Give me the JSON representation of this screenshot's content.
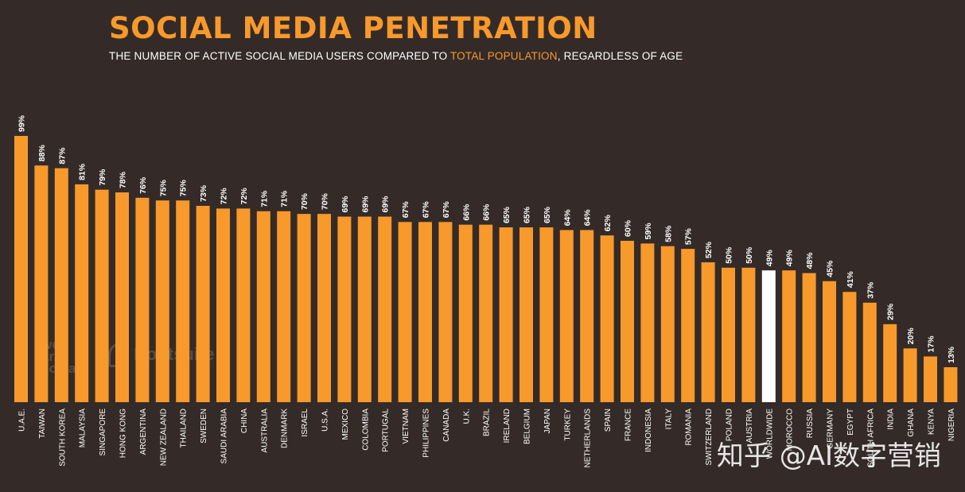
{
  "header": {
    "title": "SOCIAL MEDIA PENETRATION",
    "subtitle_part1": "THE NUMBER OF ACTIVE SOCIAL MEDIA USERS COMPARED TO ",
    "subtitle_highlight": "TOTAL POPULATION",
    "subtitle_part2": ", REGARDLESS OF AGE"
  },
  "logos": {
    "wearesocial_line1": "we",
    "wearesocial_line2": "are",
    "wearesocial_line3": "social",
    "hootsuite": "Hootsuite"
  },
  "watermark": "知乎 @AI数字营销",
  "colors": {
    "background": "#342b28",
    "bar": "#f8992c",
    "highlight_bar": "#ffffff",
    "text": "#ffffff"
  },
  "chart_data": {
    "type": "bar",
    "title": "SOCIAL MEDIA PENETRATION",
    "xlabel": "",
    "ylabel": "",
    "ylim": [
      0,
      100
    ],
    "grid": false,
    "highlight_category": "WORLDWIDE",
    "categories": [
      "U.A.E.",
      "TAIWAN",
      "SOUTH KOREA",
      "MALAYSIA",
      "SINGAPORE",
      "HONG KONG",
      "ARGENTINA",
      "NEW ZEALAND",
      "THAILAND",
      "SWEDEN",
      "SAUDI ARABIA",
      "CHINA",
      "AUSTRALIA",
      "DENMARK",
      "ISRAEL",
      "U.S.A.",
      "MEXICO",
      "COLOMBIA",
      "PORTUGAL",
      "VIETNAM",
      "PHILIPPINES",
      "CANADA",
      "U.K.",
      "BRAZIL",
      "IRELAND",
      "BELGIUM",
      "JAPAN",
      "TURKEY",
      "NETHERLANDS",
      "SPAIN",
      "FRANCE",
      "INDONESIA",
      "ITALY",
      "ROMANIA",
      "SWITZERLAND",
      "POLAND",
      "AUSTRIA",
      "WORLDWIDE",
      "MOROCCO",
      "RUSSIA",
      "GERMANY",
      "EGYPT",
      "SOUTH AFRICA",
      "INDIA",
      "GHANA",
      "KENYA",
      "NIGERIA"
    ],
    "values": [
      99,
      88,
      87,
      81,
      79,
      78,
      76,
      75,
      75,
      73,
      72,
      72,
      71,
      71,
      70,
      70,
      69,
      69,
      69,
      67,
      67,
      67,
      66,
      66,
      65,
      65,
      65,
      64,
      64,
      62,
      60,
      59,
      58,
      57,
      52,
      50,
      50,
      49,
      49,
      48,
      45,
      41,
      37,
      29,
      20,
      17,
      13
    ],
    "value_labels": [
      "99%",
      "88%",
      "87%",
      "81%",
      "79%",
      "78%",
      "76%",
      "75%",
      "75%",
      "73%",
      "72%",
      "72%",
      "71%",
      "71%",
      "70%",
      "70%",
      "69%",
      "69%",
      "69%",
      "67%",
      "67%",
      "67%",
      "66%",
      "66%",
      "65%",
      "65%",
      "65%",
      "64%",
      "64%",
      "62%",
      "60%",
      "59%",
      "58%",
      "57%",
      "52%",
      "50%",
      "50%",
      "49%",
      "49%",
      "48%",
      "45%",
      "41%",
      "37%",
      "29%",
      "20%",
      "17%",
      "13%"
    ]
  }
}
